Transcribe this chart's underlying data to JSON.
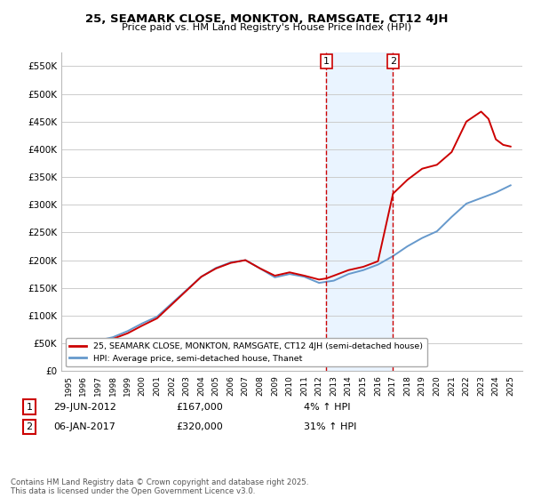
{
  "title_line1": "25, SEAMARK CLOSE, MONKTON, RAMSGATE, CT12 4JH",
  "title_line2": "Price paid vs. HM Land Registry's House Price Index (HPI)",
  "ylabel": "",
  "ylim": [
    0,
    575000
  ],
  "yticks": [
    0,
    50000,
    100000,
    150000,
    200000,
    250000,
    300000,
    350000,
    400000,
    450000,
    500000,
    550000
  ],
  "ytick_labels": [
    "£0",
    "£50K",
    "£100K",
    "£150K",
    "£200K",
    "£250K",
    "£300K",
    "£350K",
    "£400K",
    "£450K",
    "£500K",
    "£550K"
  ],
  "background_color": "#ffffff",
  "plot_bg_color": "#ffffff",
  "grid_color": "#cccccc",
  "property_color": "#cc0000",
  "hpi_color": "#6699cc",
  "vline1_x": 2012.49,
  "vline2_x": 2017.02,
  "shade_color": "#ddeeff",
  "transaction1": {
    "date": "29-JUN-2012",
    "price": "167,000",
    "label": "1",
    "pct": "4% ↑ HPI"
  },
  "transaction2": {
    "date": "06-JAN-2017",
    "price": "320,000",
    "label": "2",
    "pct": "31% ↑ HPI"
  },
  "legend_property": "25, SEAMARK CLOSE, MONKTON, RAMSGATE, CT12 4JH (semi-detached house)",
  "legend_hpi": "HPI: Average price, semi-detached house, Thanet",
  "footnote": "Contains HM Land Registry data © Crown copyright and database right 2025.\nThis data is licensed under the Open Government Licence v3.0.",
  "xlim_start": 1994.5,
  "xlim_end": 2025.8,
  "years_prop": [
    1995,
    1996,
    1997,
    1998,
    1999,
    2000,
    2001,
    2002,
    2003,
    2004,
    2005,
    2006,
    2007,
    2008,
    2009,
    2010,
    2011,
    2012.0,
    2012.49,
    2013,
    2014,
    2015,
    2016,
    2017.02,
    2018,
    2019,
    2020,
    2021,
    2022,
    2023,
    2023.5,
    2024,
    2024.5,
    2025
  ],
  "values_prop": [
    48000,
    50000,
    53000,
    58000,
    68000,
    82000,
    95000,
    120000,
    145000,
    170000,
    185000,
    195000,
    200000,
    185000,
    172000,
    178000,
    172000,
    165000,
    167000,
    172000,
    182000,
    188000,
    198000,
    320000,
    345000,
    365000,
    372000,
    395000,
    450000,
    468000,
    455000,
    418000,
    408000,
    405000
  ],
  "years_hpi": [
    1995,
    1996,
    1997,
    1998,
    1999,
    2000,
    2001,
    2002,
    2003,
    2004,
    2005,
    2006,
    2007,
    2008,
    2009,
    2010,
    2011,
    2012,
    2013,
    2014,
    2015,
    2016,
    2017,
    2018,
    2019,
    2020,
    2021,
    2022,
    2023,
    2024,
    2025
  ],
  "values_hpi": [
    47000,
    50000,
    55000,
    61000,
    72000,
    86000,
    98000,
    122000,
    146000,
    170000,
    186000,
    196000,
    200000,
    185000,
    169000,
    175000,
    170000,
    159000,
    163000,
    175000,
    182000,
    192000,
    207000,
    225000,
    240000,
    252000,
    278000,
    302000,
    312000,
    322000,
    335000
  ]
}
